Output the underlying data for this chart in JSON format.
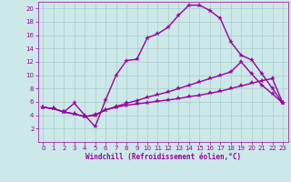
{
  "xlabel": "Windchill (Refroidissement éolien,°C)",
  "bg_color": "#cce8e8",
  "grid_color": "#aacccc",
  "line_color": "#990099",
  "line1_x": [
    0,
    1,
    2,
    3,
    4,
    5,
    6,
    7,
    8,
    9,
    10,
    11,
    12,
    13,
    14,
    15,
    16,
    17,
    18,
    19,
    20,
    21,
    22,
    23
  ],
  "line1_y": [
    5.2,
    5.0,
    4.5,
    5.8,
    4.0,
    2.3,
    6.3,
    10.0,
    12.2,
    12.4,
    15.6,
    16.2,
    17.2,
    19.0,
    20.5,
    20.5,
    19.7,
    18.5,
    15.0,
    13.0,
    12.3,
    10.2,
    8.0,
    5.8
  ],
  "line2_x": [
    0,
    1,
    2,
    3,
    4,
    5,
    6,
    7,
    8,
    9,
    10,
    11,
    12,
    13,
    14,
    15,
    16,
    17,
    18,
    19,
    20,
    21,
    22,
    23
  ],
  "line2_y": [
    5.2,
    5.0,
    4.5,
    4.2,
    3.8,
    4.0,
    4.8,
    5.3,
    5.8,
    6.2,
    6.7,
    7.1,
    7.5,
    8.0,
    8.5,
    9.0,
    9.5,
    10.0,
    10.5,
    12.0,
    10.2,
    8.5,
    7.2,
    5.8
  ],
  "line3_x": [
    0,
    1,
    2,
    3,
    4,
    5,
    6,
    7,
    8,
    9,
    10,
    11,
    12,
    13,
    14,
    15,
    16,
    17,
    18,
    19,
    20,
    21,
    22,
    23
  ],
  "line3_y": [
    5.2,
    5.0,
    4.5,
    4.2,
    3.8,
    4.1,
    4.8,
    5.2,
    5.5,
    5.7,
    5.9,
    6.1,
    6.3,
    6.5,
    6.8,
    7.0,
    7.3,
    7.6,
    8.0,
    8.4,
    8.8,
    9.2,
    9.5,
    5.8
  ],
  "ylim": [
    0,
    21
  ],
  "xlim": [
    -0.5,
    23.5
  ],
  "yticks": [
    2,
    4,
    6,
    8,
    10,
    12,
    14,
    16,
    18,
    20
  ],
  "xticks": [
    0,
    1,
    2,
    3,
    4,
    5,
    6,
    7,
    8,
    9,
    10,
    11,
    12,
    13,
    14,
    15,
    16,
    17,
    18,
    19,
    20,
    21,
    22,
    23
  ],
  "marker": "*",
  "markersize": 4,
  "linewidth": 1.0,
  "tick_fontsize": 5,
  "label_fontsize": 5.5
}
